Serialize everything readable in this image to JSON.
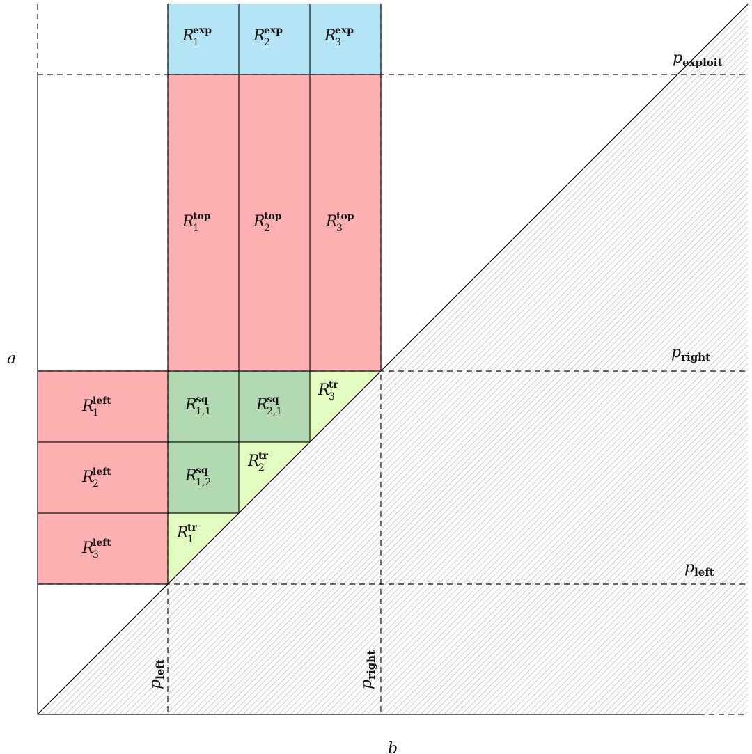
{
  "axes": {
    "x_label": "b",
    "y_label": "a"
  },
  "thresholds": {
    "p_exploit": {
      "base": "p",
      "sub": "exploit"
    },
    "p_right": {
      "base": "p",
      "sub": "right"
    },
    "p_left": {
      "base": "p",
      "sub": "left"
    }
  },
  "regions": {
    "exp": [
      {
        "base": "R",
        "sup": "exp",
        "sub": "1"
      },
      {
        "base": "R",
        "sup": "exp",
        "sub": "2"
      },
      {
        "base": "R",
        "sup": "exp",
        "sub": "3"
      }
    ],
    "top": [
      {
        "base": "R",
        "sup": "top",
        "sub": "1"
      },
      {
        "base": "R",
        "sup": "top",
        "sub": "2"
      },
      {
        "base": "R",
        "sup": "top",
        "sub": "3"
      }
    ],
    "left": [
      {
        "base": "R",
        "sup": "left",
        "sub": "1"
      },
      {
        "base": "R",
        "sup": "left",
        "sub": "2"
      },
      {
        "base": "R",
        "sup": "left",
        "sub": "3"
      }
    ],
    "sq": [
      {
        "base": "R",
        "sup": "sq",
        "sub": "1,1"
      },
      {
        "base": "R",
        "sup": "sq",
        "sub": "2,1"
      },
      {
        "base": "R",
        "sup": "sq",
        "sub": "1,2"
      }
    ],
    "tr": [
      {
        "base": "R",
        "sup": "tr",
        "sub": "1"
      },
      {
        "base": "R",
        "sup": "tr",
        "sub": "2"
      },
      {
        "base": "R",
        "sup": "tr",
        "sub": "3"
      }
    ]
  },
  "colors": {
    "exp": "#b3e5f7",
    "top_left": "#ffb0b3",
    "sq": "#b2d9b2",
    "tr": "#e2fcc0",
    "hatch": "#b0b0b0"
  }
}
